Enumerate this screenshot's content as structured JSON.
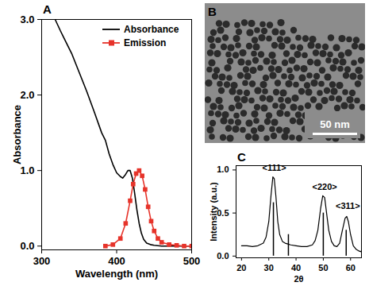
{
  "chart_data": [
    {
      "type": "line",
      "panel_label": "A",
      "x_label": "Wavelength (nm)",
      "y_label": "Absorbance",
      "xlim": [
        300,
        500
      ],
      "xticks": [
        300,
        400,
        500
      ],
      "ylim": [
        -0.05,
        3
      ],
      "yticks": [
        0,
        1,
        2,
        3
      ],
      "grid": false,
      "legend": "top-right",
      "series": [
        {
          "name": "Absorbance",
          "color": "#000000",
          "marker": "none",
          "line_style": "solid",
          "x": [
            318,
            325,
            330,
            340,
            350,
            360,
            370,
            380,
            385,
            390,
            395,
            400,
            405,
            408,
            412,
            415,
            418,
            421,
            424,
            427,
            430,
            433,
            436,
            440,
            445,
            450,
            460,
            470,
            480,
            490,
            500
          ],
          "values": [
            3.0,
            2.85,
            2.75,
            2.55,
            2.3,
            2.05,
            1.78,
            1.5,
            1.4,
            1.22,
            1.08,
            0.97,
            0.92,
            0.9,
            0.95,
            1.0,
            1.0,
            0.9,
            0.7,
            0.48,
            0.3,
            0.17,
            0.09,
            0.04,
            0.02,
            0.01,
            0.0,
            0.0,
            0.0,
            0.0,
            0.0
          ]
        },
        {
          "name": "Emission",
          "color": "#e6332a",
          "marker": "square",
          "line_style": "solid",
          "x": [
            385,
            395,
            405,
            412,
            418,
            422,
            426,
            430,
            434,
            438,
            442,
            446,
            450,
            455,
            460,
            470,
            480,
            490,
            500
          ],
          "values": [
            0.0,
            0.02,
            0.1,
            0.3,
            0.6,
            0.82,
            0.96,
            1.0,
            0.93,
            0.75,
            0.52,
            0.33,
            0.2,
            0.1,
            0.05,
            0.02,
            0.01,
            0.0,
            0.0
          ]
        }
      ]
    },
    {
      "type": "line",
      "panel_label": "C",
      "x_label": "2θ",
      "y_label": "Intensity (a.u.)",
      "xlim": [
        18,
        64
      ],
      "xticks": [
        20,
        30,
        40,
        50,
        60
      ],
      "ylim": [
        -0.02,
        1.05
      ],
      "yticks": [
        0,
        0.5,
        1
      ],
      "grid": false,
      "color": "#000000",
      "x": [
        20,
        22,
        24,
        26,
        28,
        29,
        30,
        30.8,
        31.5,
        32,
        32.6,
        33.3,
        34,
        35,
        36,
        37,
        38,
        40,
        42,
        44,
        46,
        47,
        48,
        49,
        49.8,
        50.5,
        51.2,
        52,
        53,
        54,
        55,
        56,
        57,
        58,
        58.6,
        59.2,
        60,
        61,
        62,
        63,
        64
      ],
      "values": [
        0.12,
        0.12,
        0.11,
        0.12,
        0.15,
        0.22,
        0.4,
        0.7,
        0.92,
        0.9,
        0.7,
        0.4,
        0.25,
        0.17,
        0.15,
        0.14,
        0.13,
        0.12,
        0.11,
        0.11,
        0.13,
        0.18,
        0.3,
        0.55,
        0.7,
        0.68,
        0.5,
        0.3,
        0.17,
        0.12,
        0.11,
        0.15,
        0.3,
        0.44,
        0.46,
        0.4,
        0.25,
        0.12,
        0.08,
        0.06,
        0.05
      ],
      "reference_peaks": {
        "x": [
          31.7,
          37.2,
          50.0,
          58.4
        ],
        "values": [
          0.62,
          0.25,
          0.5,
          0.3
        ]
      },
      "annotations": [
        {
          "text": "<111>",
          "x": 32,
          "y": 1.02
        },
        {
          "text": "<220>",
          "x": 50.5,
          "y": 0.8
        },
        {
          "text": "<311>",
          "x": 59,
          "y": 0.58
        }
      ]
    }
  ],
  "image_panel": {
    "panel_label": "B",
    "scale_bar_label": "50 nm"
  }
}
